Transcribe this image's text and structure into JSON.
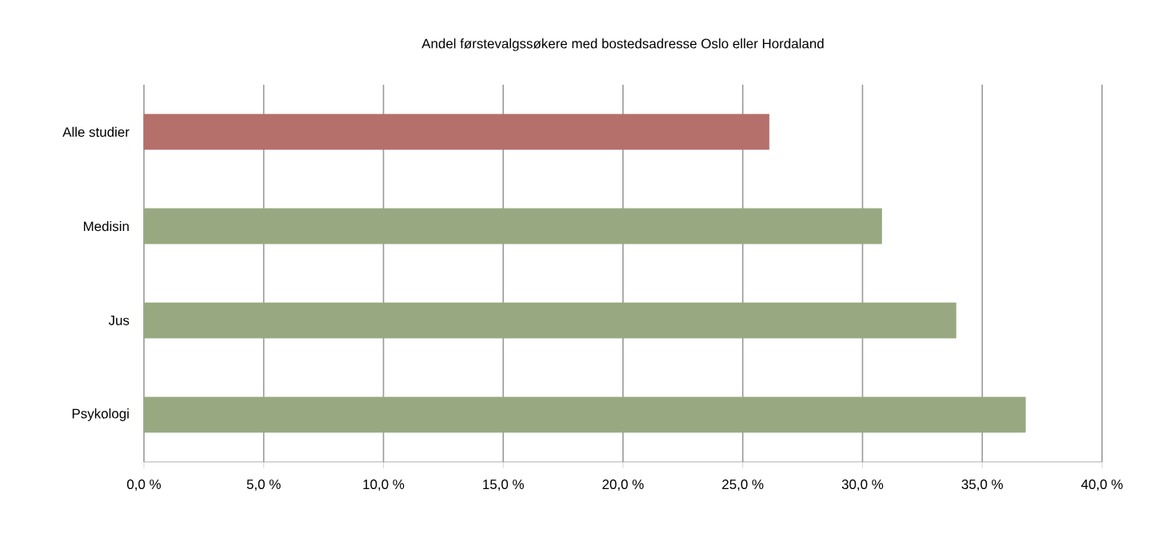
{
  "chart_data": {
    "type": "bar",
    "orientation": "horizontal",
    "title": "Andel førstevalgssøkere med bostedsadresse Oslo eller Hordaland",
    "categories": [
      "Alle studier",
      "Medisin",
      "Jus",
      "Psykologi"
    ],
    "values": [
      26.1,
      30.8,
      33.9,
      36.8
    ],
    "colors": [
      "#b5706c",
      "#98a982",
      "#98a982",
      "#98a982"
    ],
    "xlim": [
      0,
      40
    ],
    "xticks": [
      {
        "value": 0,
        "label": "0,0 %"
      },
      {
        "value": 5,
        "label": "5,0 %"
      },
      {
        "value": 10,
        "label": "10,0 %"
      },
      {
        "value": 15,
        "label": "15,0 %"
      },
      {
        "value": 20,
        "label": "20,0 %"
      },
      {
        "value": 25,
        "label": "25,0 %"
      },
      {
        "value": 30,
        "label": "30,0 %"
      },
      {
        "value": 35,
        "label": "35,0 %"
      },
      {
        "value": 40,
        "label": "40,0 %"
      }
    ],
    "grid": "x"
  }
}
